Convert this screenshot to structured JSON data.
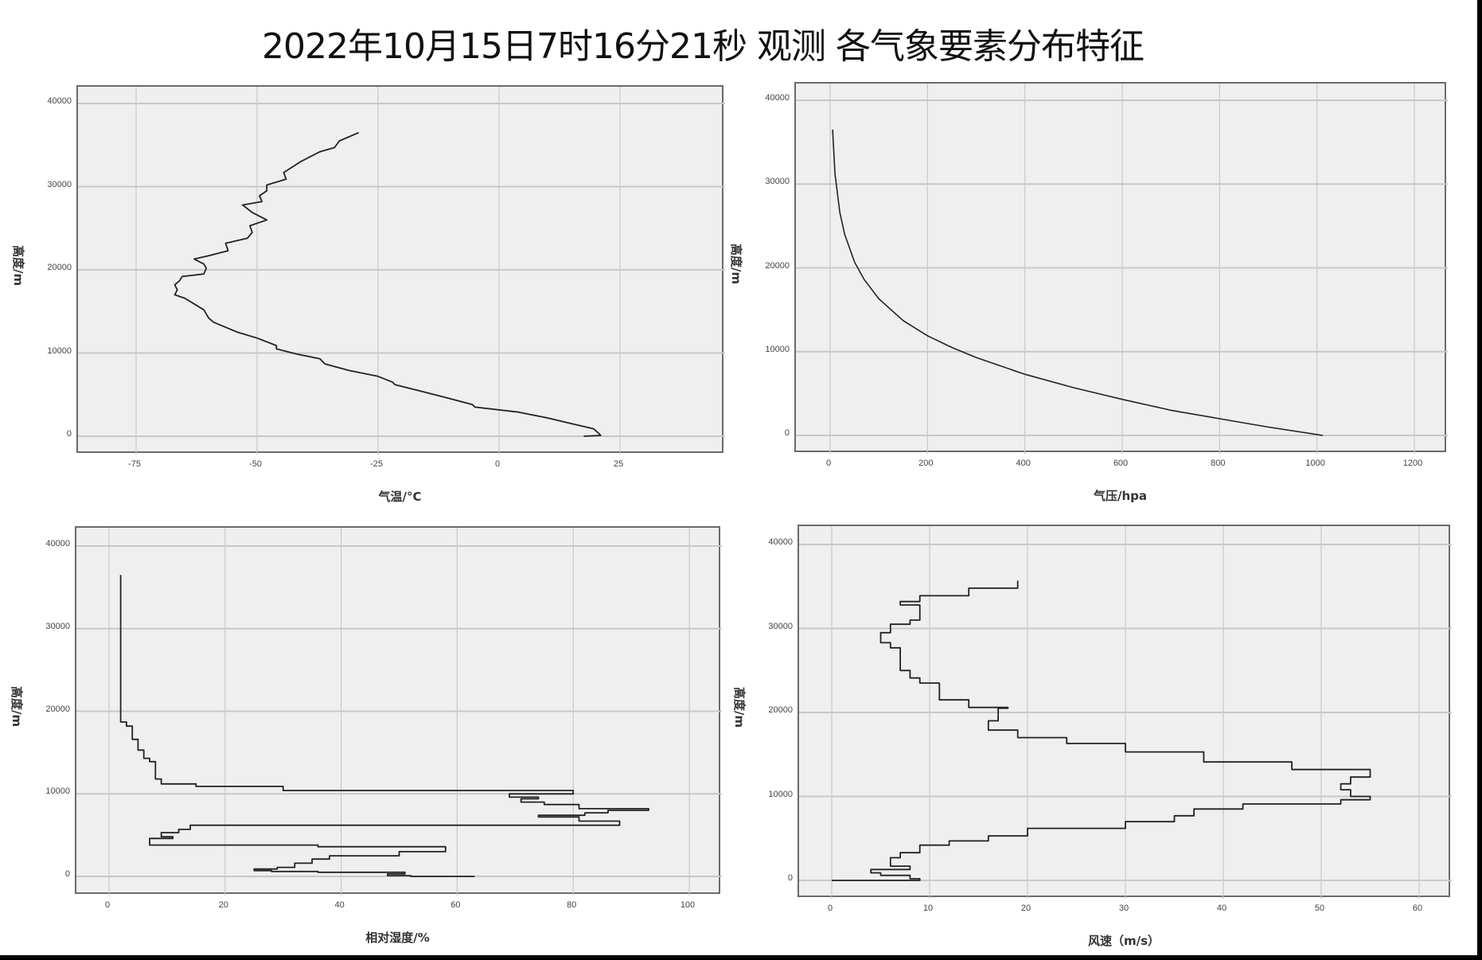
{
  "title": "2022年10月15日7时16分21秒 观测 各气象要素分布特征",
  "chart_data": [
    {
      "type": "line",
      "id": "temperature",
      "title": "",
      "xlabel": "气温/°C",
      "ylabel": "高度/m",
      "xlim": [
        -87,
        46
      ],
      "ylim": [
        -2600,
        42800
      ],
      "xticks": [
        -75,
        -50,
        -25,
        0,
        25
      ],
      "yticks": [
        0,
        10000,
        20000,
        30000,
        40000
      ],
      "grid": true,
      "series": [
        {
          "name": "气温",
          "points": [
            [
              17.5,
              0
            ],
            [
              21,
              100
            ],
            [
              20.5,
              400
            ],
            [
              19.5,
              900
            ],
            [
              15,
              1500
            ],
            [
              10,
              2200
            ],
            [
              4,
              2900
            ],
            [
              -5,
              3500
            ],
            [
              -5.5,
              3800
            ],
            [
              -10,
              4500
            ],
            [
              -16,
              5400
            ],
            [
              -21.5,
              6200
            ],
            [
              -22,
              6500
            ],
            [
              -25,
              7200
            ],
            [
              -31,
              7900
            ],
            [
              -36,
              8700
            ],
            [
              -37,
              9300
            ],
            [
              -42,
              9900
            ],
            [
              -46,
              10500
            ],
            [
              -46,
              10900
            ],
            [
              -50,
              11800
            ],
            [
              -54,
              12500
            ],
            [
              -59,
              13700
            ],
            [
              -60,
              14200
            ],
            [
              -61,
              15200
            ],
            [
              -63,
              15900
            ],
            [
              -65,
              16600
            ],
            [
              -67,
              17000
            ],
            [
              -66.5,
              17600
            ],
            [
              -67,
              18200
            ],
            [
              -66,
              18700
            ],
            [
              -65.5,
              19200
            ],
            [
              -61,
              19500
            ],
            [
              -60.5,
              20200
            ],
            [
              -61,
              20700
            ],
            [
              -63,
              21300
            ],
            [
              -60,
              21700
            ],
            [
              -56,
              22300
            ],
            [
              -56.5,
              23200
            ],
            [
              -52,
              23800
            ],
            [
              -51,
              24500
            ],
            [
              -51.5,
              25300
            ],
            [
              -48,
              26000
            ],
            [
              -51,
              26900
            ],
            [
              -53,
              27800
            ],
            [
              -49,
              28200
            ],
            [
              -49.5,
              28900
            ],
            [
              -48,
              29500
            ],
            [
              -48,
              30200
            ],
            [
              -44,
              30900
            ],
            [
              -44.5,
              31700
            ],
            [
              -41,
              33000
            ],
            [
              -37,
              34200
            ],
            [
              -34,
              34700
            ],
            [
              -33,
              35500
            ],
            [
              -29,
              36500
            ]
          ]
        }
      ]
    },
    {
      "type": "line",
      "id": "pressure",
      "title": "",
      "xlabel": "气压/hpa",
      "ylabel": "高度/m",
      "xlim": [
        -70,
        1270
      ],
      "ylim": [
        -2600,
        42800
      ],
      "xticks": [
        0,
        200,
        400,
        600,
        800,
        1000,
        1200
      ],
      "yticks": [
        0,
        10000,
        20000,
        30000,
        40000
      ],
      "grid": true,
      "series": [
        {
          "name": "气压",
          "points": [
            [
              1012,
              0
            ],
            [
              900,
              1000
            ],
            [
              800,
              2000
            ],
            [
              700,
              3000
            ],
            [
              600,
              4300
            ],
            [
              500,
              5700
            ],
            [
              400,
              7300
            ],
            [
              300,
              9300
            ],
            [
              250,
              10500
            ],
            [
              200,
              11900
            ],
            [
              150,
              13700
            ],
            [
              100,
              16300
            ],
            [
              70,
              18600
            ],
            [
              50,
              20700
            ],
            [
              30,
              24000
            ],
            [
              20,
              26600
            ],
            [
              10,
              31200
            ],
            [
              5,
              36500
            ]
          ]
        }
      ]
    },
    {
      "type": "line",
      "id": "humidity",
      "title": "",
      "xlabel": "相对湿度/%",
      "ylabel": "高度/m",
      "xlim": [
        -5.5,
        105.5
      ],
      "ylim": [
        -2300,
        42500
      ],
      "xticks": [
        0,
        20,
        40,
        60,
        80,
        100
      ],
      "yticks": [
        0,
        10000,
        20000,
        30000,
        40000
      ],
      "grid": true,
      "series": [
        {
          "name": "相对湿度",
          "points": [
            [
              63,
              0
            ],
            [
              52,
              100
            ],
            [
              48,
              300
            ],
            [
              51,
              500
            ],
            [
              36,
              600
            ],
            [
              28,
              700
            ],
            [
              25,
              900
            ],
            [
              29,
              1100
            ],
            [
              32,
              1600
            ],
            [
              35,
              2100
            ],
            [
              38,
              2500
            ],
            [
              50,
              3000
            ],
            [
              58,
              3600
            ],
            [
              36,
              3800
            ],
            [
              7,
              3900
            ],
            [
              7,
              4600
            ],
            [
              11,
              4800
            ],
            [
              9,
              5300
            ],
            [
              12,
              5700
            ],
            [
              14,
              6200
            ],
            [
              88,
              6700
            ],
            [
              81,
              7200
            ],
            [
              74,
              7400
            ],
            [
              82,
              7700
            ],
            [
              86,
              8000
            ],
            [
              93,
              8200
            ],
            [
              81,
              8700
            ],
            [
              75,
              9000
            ],
            [
              71,
              9400
            ],
            [
              74,
              9600
            ],
            [
              69,
              10000
            ],
            [
              80,
              10400
            ],
            [
              30,
              10900
            ],
            [
              15,
              11200
            ],
            [
              9,
              11800
            ],
            [
              8,
              12400
            ],
            [
              8,
              13900
            ],
            [
              7,
              14300
            ],
            [
              6,
              14700
            ],
            [
              6,
              15300
            ],
            [
              5,
              15500
            ],
            [
              5,
              16600
            ],
            [
              4,
              17000
            ],
            [
              4,
              18200
            ],
            [
              3,
              18700
            ],
            [
              2,
              18800
            ],
            [
              2,
              36500
            ]
          ]
        }
      ]
    },
    {
      "type": "line",
      "id": "wind_speed",
      "title": "",
      "xlabel": "风速（m/s）",
      "ylabel": "高度/m",
      "xlim": [
        -3.3,
        63
      ],
      "ylim": [
        -2300,
        42500
      ],
      "xticks": [
        0,
        10,
        20,
        30,
        40,
        50,
        60
      ],
      "yticks": [
        0,
        10000,
        20000,
        30000,
        40000
      ],
      "grid": true,
      "series": [
        {
          "name": "风速",
          "points": [
            [
              0,
              0
            ],
            [
              9,
              200
            ],
            [
              8,
              600
            ],
            [
              5,
              900
            ],
            [
              4,
              1300
            ],
            [
              8,
              1700
            ],
            [
              6,
              2100
            ],
            [
              6,
              2700
            ],
            [
              7,
              3300
            ],
            [
              9,
              4200
            ],
            [
              12,
              4700
            ],
            [
              16,
              5300
            ],
            [
              20,
              6200
            ],
            [
              30,
              7000
            ],
            [
              35,
              7700
            ],
            [
              37,
              8500
            ],
            [
              42,
              9100
            ],
            [
              52,
              9600
            ],
            [
              55,
              10000
            ],
            [
              53,
              10800
            ],
            [
              52,
              11500
            ],
            [
              53,
              12300
            ],
            [
              55,
              13200
            ],
            [
              47,
              14100
            ],
            [
              38,
              15300
            ],
            [
              30,
              16300
            ],
            [
              24,
              17000
            ],
            [
              19,
              17900
            ],
            [
              16,
              19000
            ],
            [
              17,
              19800
            ],
            [
              17,
              20500
            ],
            [
              18,
              20600
            ],
            [
              14,
              21500
            ],
            [
              11,
              22200
            ],
            [
              11,
              23500
            ],
            [
              9,
              24100
            ],
            [
              8,
              25000
            ],
            [
              7,
              26100
            ],
            [
              7,
              27700
            ],
            [
              6,
              28300
            ],
            [
              5,
              29500
            ],
            [
              6,
              30500
            ],
            [
              8,
              31000
            ],
            [
              9,
              31500
            ],
            [
              9,
              32800
            ],
            [
              7,
              33200
            ],
            [
              9,
              33900
            ],
            [
              14,
              34800
            ],
            [
              19,
              35700
            ]
          ]
        }
      ]
    }
  ],
  "panels": [
    {
      "xlabel": "气温/°C",
      "ylabel": "高度/m",
      "xtick_labels": [
        "-75",
        "-50",
        "-25",
        "0",
        "25"
      ],
      "ytick_labels": [
        "0",
        "10000",
        "20000",
        "30000",
        "40000"
      ]
    },
    {
      "xlabel": "气压/hpa",
      "ylabel": "高度/m",
      "xtick_labels": [
        "0",
        "200",
        "400",
        "600",
        "800",
        "1000",
        "1200"
      ],
      "ytick_labels": [
        "0",
        "10000",
        "20000",
        "30000",
        "40000"
      ]
    },
    {
      "xlabel": "相对湿度/%",
      "ylabel": "高度/m",
      "xtick_labels": [
        "0",
        "20",
        "40",
        "60",
        "80",
        "100"
      ],
      "ytick_labels": [
        "0",
        "10000",
        "20000",
        "30000",
        "40000"
      ]
    },
    {
      "xlabel": "风速（m/s）",
      "ylabel": "高度/m",
      "xtick_labels": [
        "0",
        "10",
        "20",
        "30",
        "40",
        "50",
        "60"
      ],
      "ytick_labels": [
        "0",
        "10000",
        "20000",
        "30000",
        "40000"
      ]
    }
  ],
  "colors": {
    "plot_bg": "#efefef",
    "grid": "#c8c8c8",
    "line": "#222222",
    "frame": "#6a6a6a"
  }
}
